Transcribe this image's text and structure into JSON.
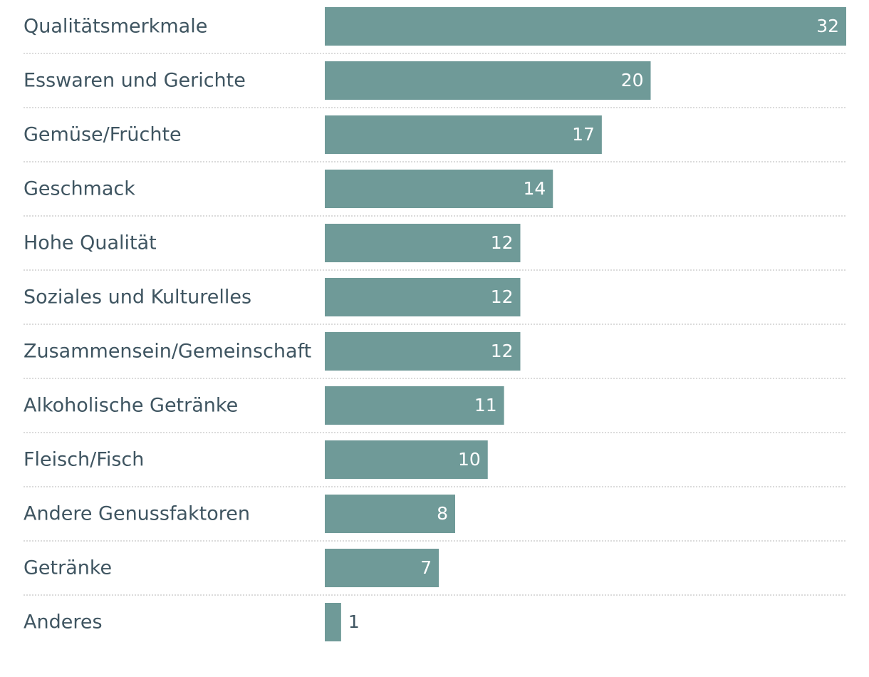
{
  "chart_data": {
    "type": "bar",
    "orientation": "horizontal",
    "title": "",
    "xlabel": "",
    "ylabel": "",
    "grid": false,
    "xlim": [
      0,
      32
    ],
    "bar_color": "#6f9a98",
    "label_color": "#3f5561",
    "categories": [
      "Qualitätsmerkmale",
      "Esswaren und Gerichte",
      "Gemüse/Früchte",
      "Geschmack",
      "Hohe Qualität",
      "Soziales und Kulturelles",
      "Zusammensein/Gemeinschaft",
      "Alkoholische Getränke",
      "Fleisch/Fisch",
      "Andere Genussfaktoren",
      "Getränke",
      "Anderes"
    ],
    "values": [
      32,
      20,
      17,
      14,
      12,
      12,
      12,
      11,
      10,
      8,
      7,
      1
    ]
  }
}
